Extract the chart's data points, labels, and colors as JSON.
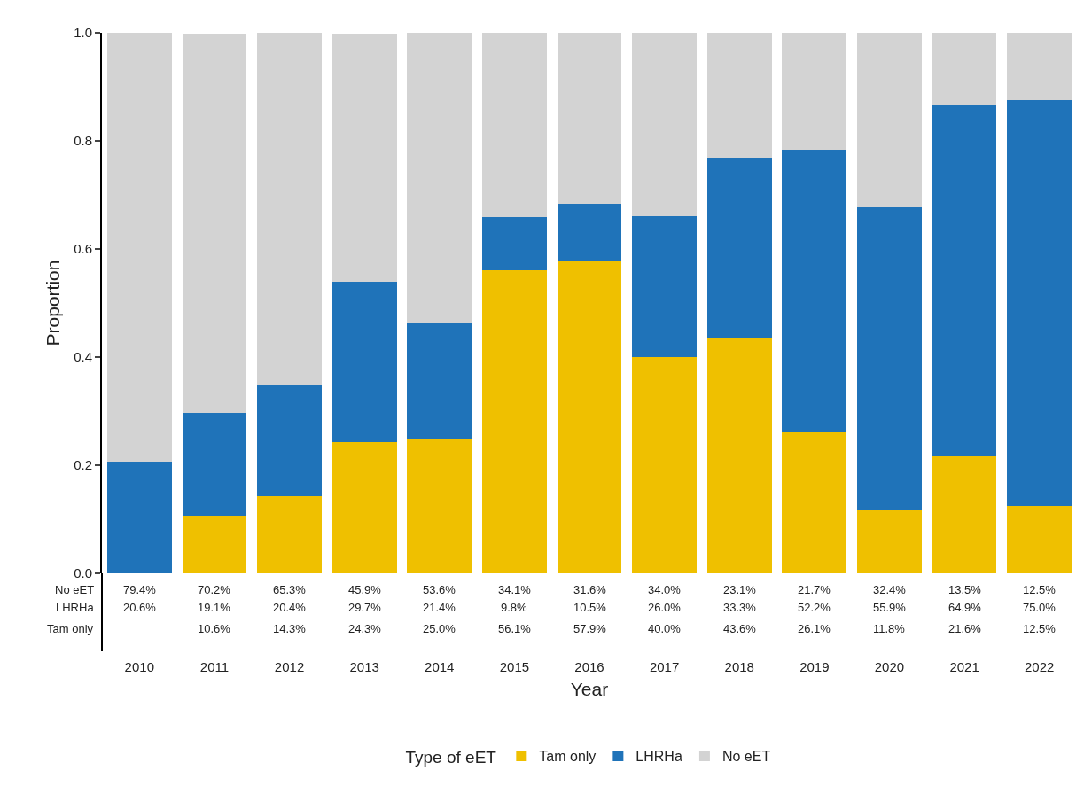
{
  "chart_data": {
    "type": "bar",
    "stacked": true,
    "xlabel": "Year",
    "ylabel": "Proportion",
    "legend_title": "Type of eET",
    "legend": "bottom",
    "categories": [
      "2010",
      "2011",
      "2012",
      "2013",
      "2014",
      "2015",
      "2016",
      "2017",
      "2018",
      "2019",
      "2020",
      "2021",
      "2022"
    ],
    "ylim": [
      0,
      1
    ],
    "yticks": [
      {
        "value": 0,
        "label": "0.0"
      },
      0.2,
      0.4,
      0.6,
      0.8,
      {
        "value": 1,
        "label": "1.0"
      }
    ],
    "series": [
      {
        "name": "Tam only",
        "color": "#efc000",
        "values": [
          0,
          0.106,
          0.143,
          0.243,
          0.25,
          0.561,
          0.579,
          0.4,
          0.436,
          0.261,
          0.118,
          0.216,
          0.125
        ],
        "value_labels": [
          null,
          "10.6%",
          "14.3%",
          "24.3%",
          "25.0%",
          "56.1%",
          "57.9%",
          "40.0%",
          "43.6%",
          "26.1%",
          "11.8%",
          "21.6%",
          "12.5%"
        ]
      },
      {
        "name": "LHRHa",
        "color": "#1f73b9",
        "values": [
          0.206,
          0.191,
          0.204,
          0.297,
          0.214,
          0.098,
          0.105,
          0.26,
          0.333,
          0.522,
          0.559,
          0.649,
          0.75
        ],
        "value_labels": [
          "20.6%",
          "19.1%",
          "20.4%",
          "29.7%",
          "21.4%",
          "9.8%",
          "10.5%",
          "26.0%",
          "33.3%",
          "52.2%",
          "55.9%",
          "64.9%",
          "75.0%"
        ]
      },
      {
        "name": "No eET",
        "color": "#d3d3d3",
        "values": [
          0.794,
          0.702,
          0.653,
          0.459,
          0.536,
          0.341,
          0.316,
          0.34,
          0.231,
          0.217,
          0.324,
          0.135,
          0.125
        ],
        "value_labels": [
          "79.4%",
          "70.2%",
          "65.3%",
          "45.9%",
          "53.6%",
          "34.1%",
          "31.6%",
          "34.0%",
          "23.1%",
          "21.7%",
          "32.4%",
          "13.5%",
          "12.5%"
        ]
      }
    ]
  }
}
